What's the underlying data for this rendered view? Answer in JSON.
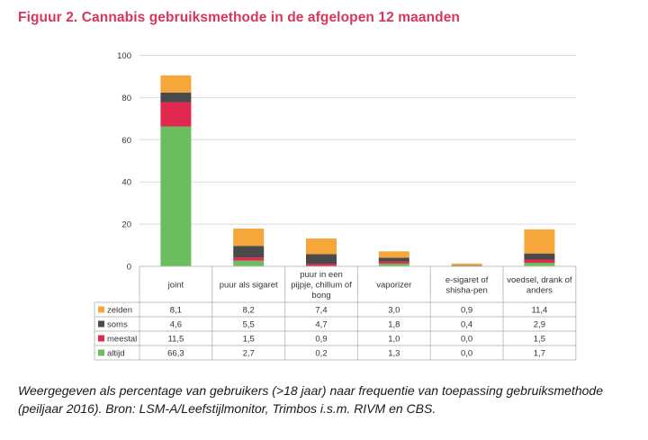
{
  "figure": {
    "title": "Figuur 2. Cannabis gebruiksmethode in de afgelopen 12 maanden",
    "caption": "Weergegeven als percentage van gebruikers (>18 jaar) naar frequentie van toepassing gebruiksmethode (peiljaar 2016). Bron: LSM-A/Leefstijlmonitor, Trimbos i.s.m. RIVM en CBS."
  },
  "chart_data": {
    "type": "bar",
    "stacked": true,
    "title": "",
    "xlabel": "",
    "ylabel": "",
    "ylim": [
      0,
      100
    ],
    "yticks": [
      0,
      20,
      40,
      60,
      80,
      100
    ],
    "grid": true,
    "legend_placement": "left of data table",
    "categories": [
      [
        "joint"
      ],
      [
        "puur als sigaret"
      ],
      [
        "puur in een",
        "pijpje, chillum of",
        "bong"
      ],
      [
        "vaporizer"
      ],
      [
        "e-sigaret of",
        "shisha-pen"
      ],
      [
        "voedsel, drank of",
        "anders"
      ]
    ],
    "series": [
      {
        "name": "altijd",
        "color": "#6cbd5e",
        "values": [
          66.3,
          2.7,
          0.2,
          1.3,
          0.0,
          1.7
        ],
        "labels": [
          "66,3",
          "2,7",
          "0,2",
          "1,3",
          "0,0",
          "1,7"
        ]
      },
      {
        "name": "meestal",
        "color": "#e0294e",
        "values": [
          11.5,
          1.5,
          0.9,
          1.0,
          0.0,
          1.5
        ],
        "labels": [
          "11,5",
          "1,5",
          "0,9",
          "1,0",
          "0,0",
          "1,5"
        ]
      },
      {
        "name": "soms",
        "color": "#4a4a4a",
        "values": [
          4.6,
          5.5,
          4.7,
          1.8,
          0.4,
          2.9
        ],
        "labels": [
          "4,6",
          "5,5",
          "4,7",
          "1,8",
          "0,4",
          "2,9"
        ]
      },
      {
        "name": "zelden",
        "color": "#f6a73b",
        "values": [
          8.1,
          8.2,
          7.4,
          3.0,
          0.9,
          11.4
        ],
        "labels": [
          "8,1",
          "8,2",
          "7,4",
          "3,0",
          "0,9",
          "11,4"
        ]
      }
    ],
    "table_row_order": [
      "zelden",
      "soms",
      "meestal",
      "altijd"
    ],
    "colors": {
      "grid": "#d9d9d9",
      "table_border": "#bfbfbf",
      "text": "#333333",
      "title": "#d8365a"
    }
  }
}
